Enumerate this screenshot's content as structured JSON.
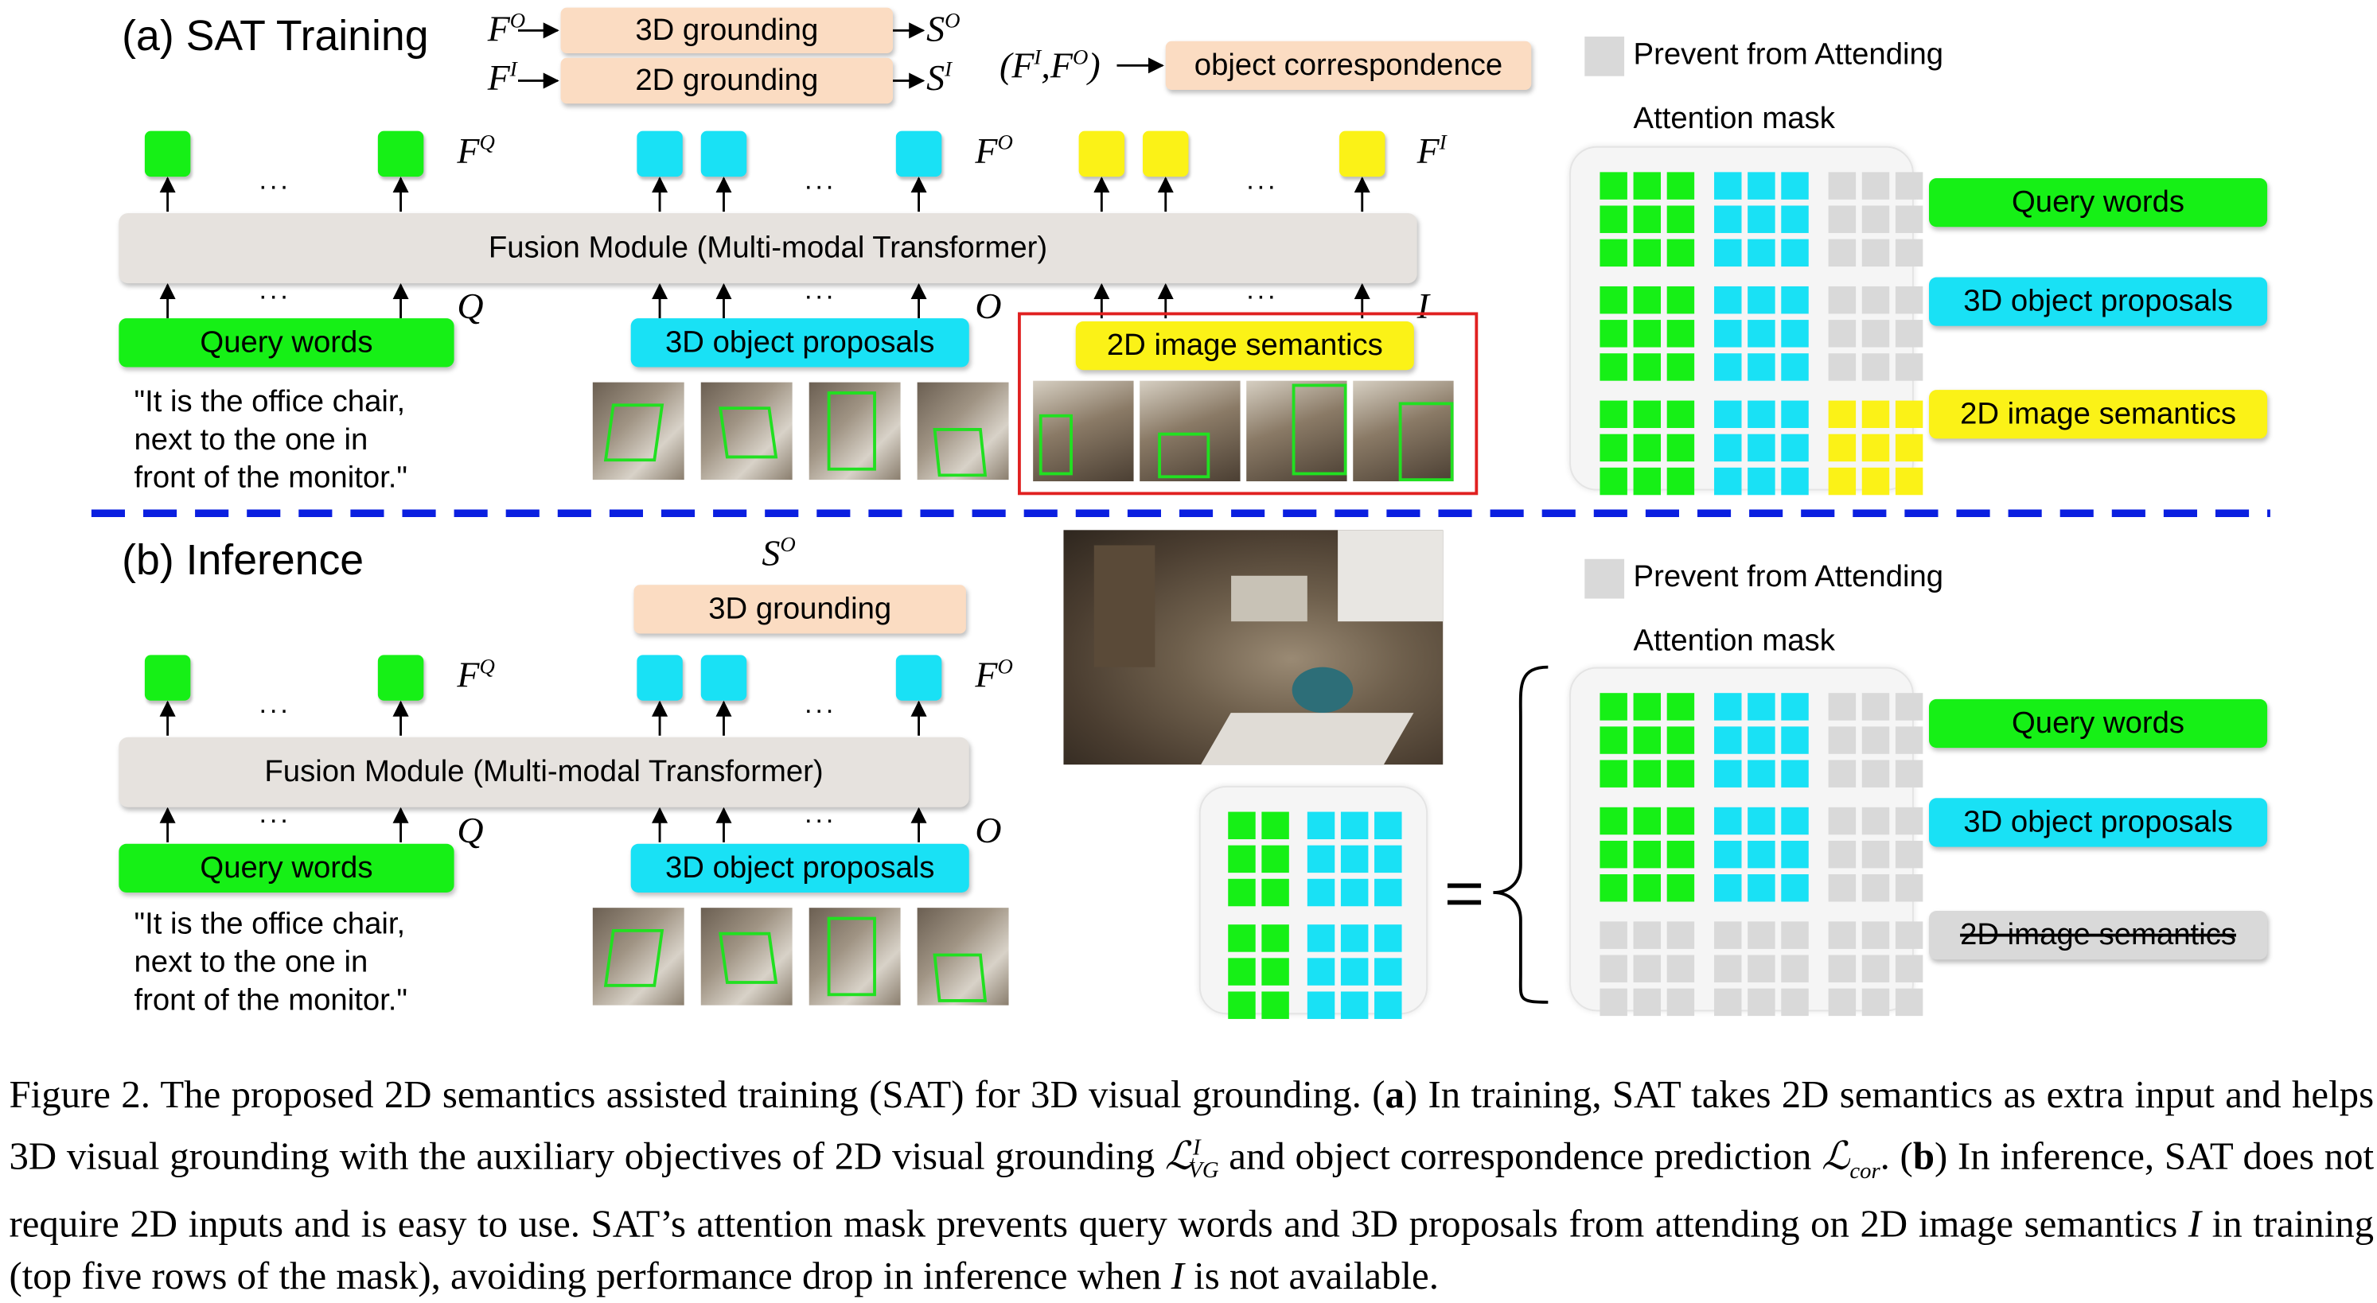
{
  "training": {
    "title": "(a) SAT Training",
    "fo": "F",
    "fo_sup": "O",
    "fi": "F",
    "fi_sup": "I",
    "grounding3d": "3D grounding",
    "grounding2d": "2D grounding",
    "so": "S",
    "so_sup": "O",
    "si": "S",
    "si_sup": "I",
    "pair": "(F",
    "pair_sup1": "I",
    "pair_mid": ",F",
    "pair_sup2": "O",
    "pair_end": ")",
    "object_correspondence": "object correspondence",
    "fq": "F",
    "fq_sup": "Q",
    "fo_out": "F",
    "fo_out_sup": "O",
    "fi_out": "F",
    "fi_out_sup": "I",
    "fusion": "Fusion Module (Multi-modal Transformer)",
    "q": "Q",
    "o": "O",
    "i": "I",
    "query_words": "Query words",
    "proposals": "3D object proposals",
    "semantics": "2D image semantics",
    "quote_line1": "\"It is the office chair,",
    "quote_line2": "next to the one in",
    "quote_line3": "front of the monitor.\"",
    "prevent": "Prevent from Attending",
    "attention_mask": "Attention mask",
    "legend_query": "Query words",
    "legend_proposals": "3D object proposals",
    "legend_semantics": "2D image semantics"
  },
  "inference": {
    "title": "(b) Inference",
    "so": "S",
    "so_sup": "O",
    "grounding3d": "3D grounding",
    "fq": "F",
    "fq_sup": "Q",
    "fo": "F",
    "fo_sup": "O",
    "fusion": "Fusion Module (Multi-modal Transformer)",
    "q": "Q",
    "o": "O",
    "query_words": "Query words",
    "proposals": "3D object proposals",
    "quote_line1": "\"It is the office chair,",
    "quote_line2": "next to the one in",
    "quote_line3": "front of the monitor.\"",
    "prevent": "Prevent from Attending",
    "attention_mask": "Attention mask",
    "legend_query": "Query words",
    "legend_proposals": "3D object proposals",
    "legend_semantics": "2D image semantics"
  },
  "dots": "...",
  "colors": {
    "query": "#16f016",
    "proposal": "#19e1f5",
    "semantic": "#fbf217",
    "masked": "#d9d9d9",
    "divider": "#0a1fe0",
    "highlight": "#e02020"
  },
  "caption": {
    "p1": "Figure 2. The proposed 2D semantics assisted training (SAT) for 3D visual grounding. (",
    "a": "a",
    "p2": ") In training, SAT takes 2D semantics as extra input and helps 3D visual grounding with the auxiliary objectives of 2D visual grounding ",
    "l_vg": "ℒ",
    "l_vg_sup": "I",
    "l_vg_sub": "VG",
    "p3": " and object correspondence prediction ",
    "l_cor": "ℒ",
    "l_cor_sub": "cor",
    "p4": ". (",
    "b": "b",
    "p5": ") In inference, SAT does not require 2D inputs and is easy to use. SAT’s attention mask prevents query words and 3D proposals from attending on 2D image semantics ",
    "i1": "I",
    "p6": " in training (top five rows of the mask), avoiding performance drop in inference when ",
    "i2": "I",
    "p7": " is not available."
  }
}
